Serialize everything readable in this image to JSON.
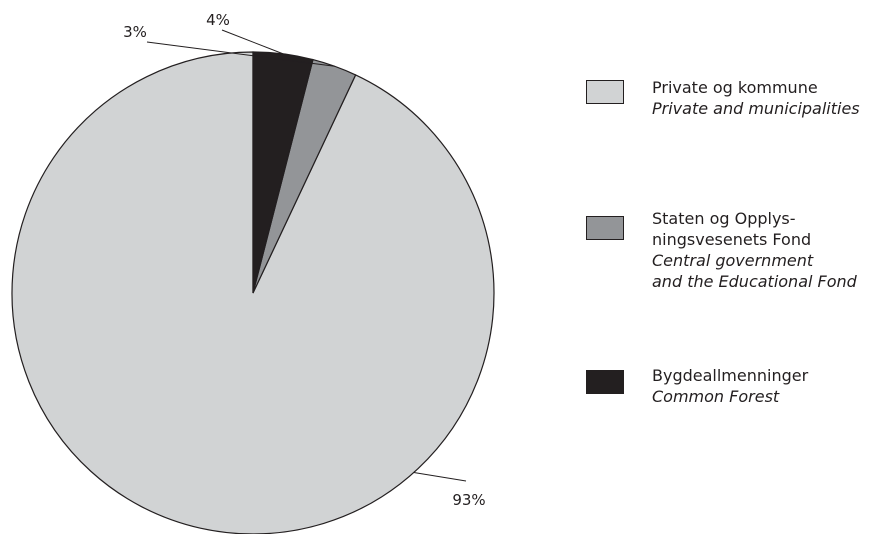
{
  "chart_data": {
    "type": "pie",
    "slices": [
      {
        "value": 93,
        "label": "93%",
        "color": "#d1d3d4",
        "legend": [
          "Private og kommune"
        ],
        "legend_en": [
          "Private and municipalities"
        ]
      },
      {
        "value": 3,
        "label": "3%",
        "color": "#939598",
        "legend": [
          "Staten og Opplys-",
          "ningsvesenets Fond"
        ],
        "legend_en": [
          "Central government",
          "and the Educational Fond"
        ]
      },
      {
        "value": 4,
        "label": "4%",
        "color": "#231f20",
        "legend": [
          "Bygdeallmenninger"
        ],
        "legend_en": [
          "Common Forest"
        ]
      }
    ],
    "order": "counterclockwise from top: 93%, 3%, 4%",
    "legend_position": "right"
  },
  "colors": {
    "outline": "#231f20",
    "background": "#ffffff"
  }
}
